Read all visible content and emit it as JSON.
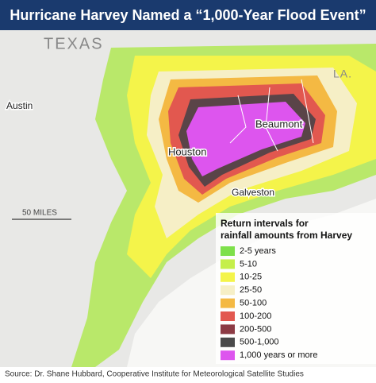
{
  "header": {
    "title": "Hurricane Harvey Named a “1,000-Year Flood Event”"
  },
  "map_labels": {
    "state": "TEXAS",
    "neighbor": "LA.",
    "cities": [
      "Austin",
      "Houston",
      "Beaumont",
      "Galveston"
    ],
    "scale": "50 MILES"
  },
  "legend": {
    "title": [
      "Return intervals for",
      "rainfall amounts from Harvey"
    ],
    "items": [
      {
        "label": "2-5 years",
        "color": "#7ee04a"
      },
      {
        "label": "5-10",
        "color": "#c5ef4a"
      },
      {
        "label": "10-25",
        "color": "#f4f44a"
      },
      {
        "label": "25-50",
        "color": "#f6efc6"
      },
      {
        "label": "50-100",
        "color": "#f4b943"
      },
      {
        "label": "100-200",
        "color": "#e2584f"
      },
      {
        "label": "200-500",
        "color": "#8c3b44"
      },
      {
        "label": "500-1,000",
        "color": "#4a4a4a"
      },
      {
        "label": "1,000 years or more",
        "color": "#dd55ee"
      }
    ]
  },
  "source": "Source: Dr. Shane Hubbard, Cooperative Institute for Meteorological Satellite Studies"
}
